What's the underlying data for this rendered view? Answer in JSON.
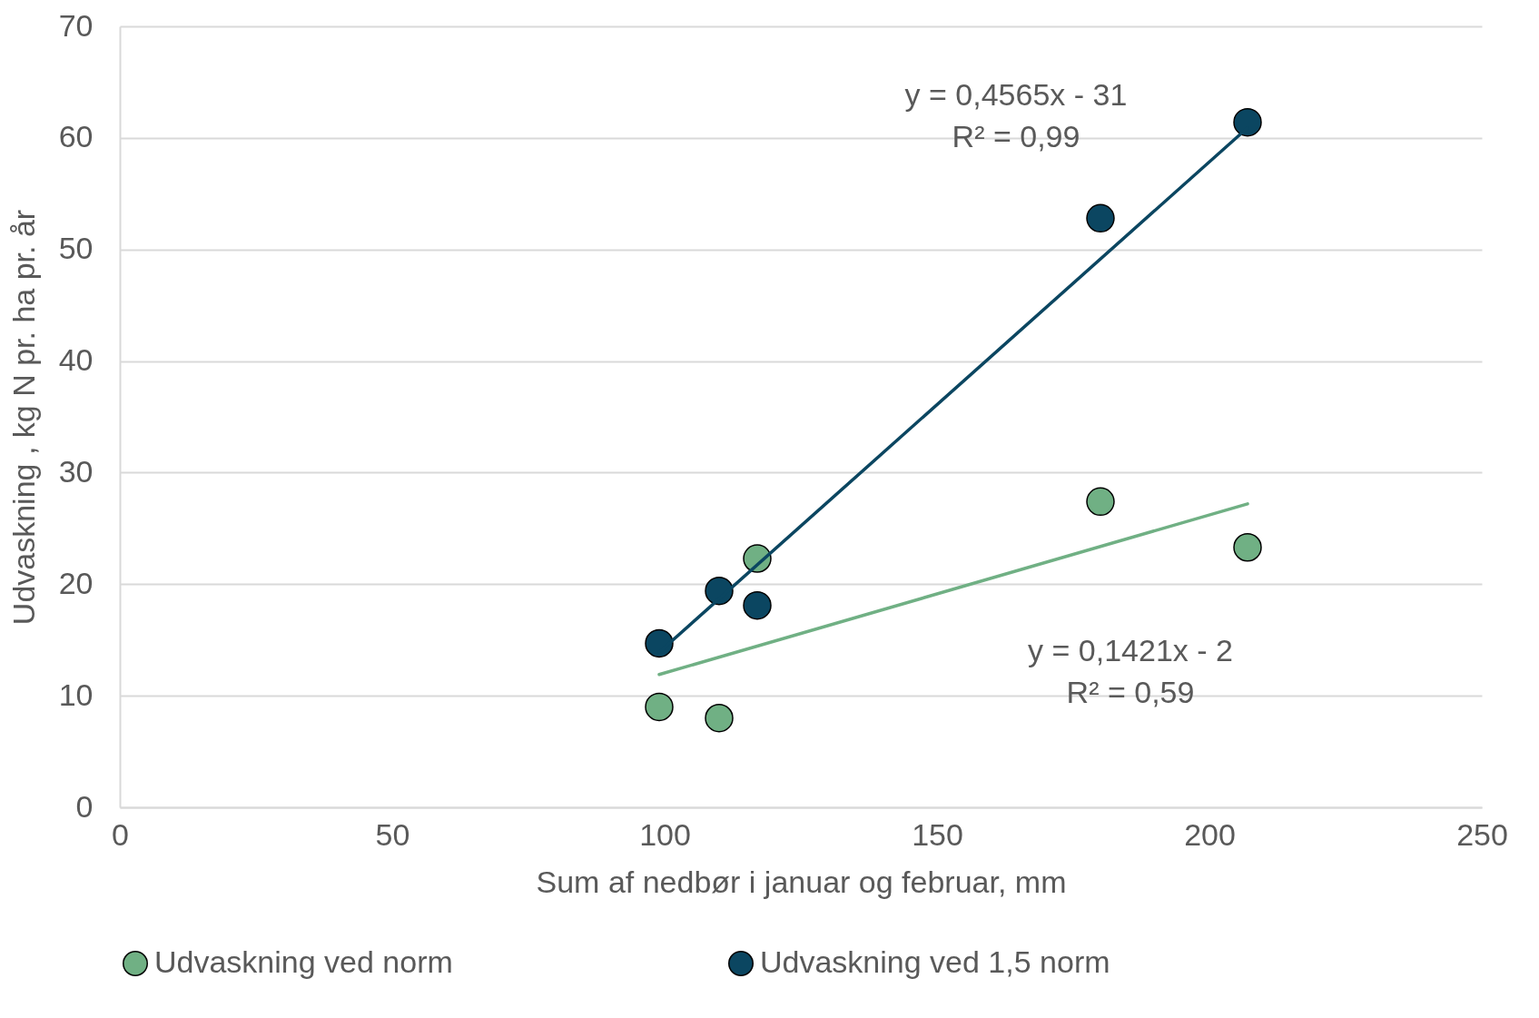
{
  "chart_data": {
    "type": "scatter",
    "xlabel": "Sum af nedbør i januar og februar, mm",
    "ylabel": "Udvaskning , kg  N pr. ha pr. år",
    "xlim": [
      0,
      250
    ],
    "xticks": [
      0,
      50,
      100,
      150,
      200,
      250
    ],
    "ylim": [
      0,
      70
    ],
    "yticks": [
      0,
      10,
      20,
      30,
      40,
      50,
      60,
      70
    ],
    "grid": "y",
    "legend": "bottom",
    "series": [
      {
        "name": "Udvaskning ved norm",
        "marker": "circle",
        "color": "#70b084",
        "x": [
          99,
          110,
          117,
          180,
          207
        ],
        "values": [
          9,
          8,
          22.3,
          27.4,
          23.3
        ]
      },
      {
        "name": "Udvaskning ved 1,5 norm",
        "marker": "circle",
        "color": "#0b4661",
        "x": [
          99,
          110,
          117,
          180,
          207
        ],
        "values": [
          14.7,
          19.4,
          18.1,
          52.8,
          61.4
        ]
      },
      {
        "type": "line",
        "color": "#0b4661",
        "x": [
          99,
          207
        ],
        "values": [
          13.9,
          60.9
        ]
      },
      {
        "type": "line",
        "color": "#70b084",
        "x": [
          99,
          207
        ],
        "values": [
          11.9,
          27.2
        ]
      }
    ],
    "annotations": [
      "y = 0,4565x - 31\nR² = 0,99",
      "y = 0,1421x - 2\nR² = 0,59"
    ]
  }
}
